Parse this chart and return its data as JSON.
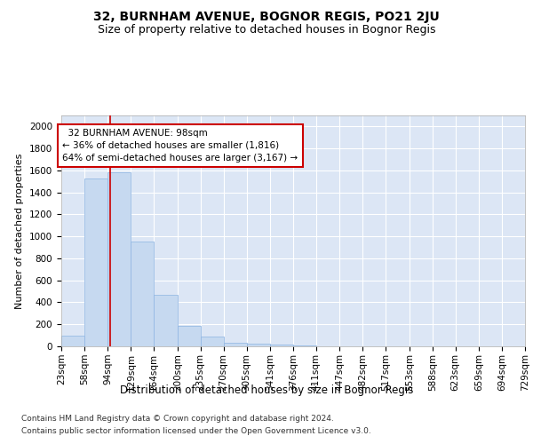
{
  "title1": "32, BURNHAM AVENUE, BOGNOR REGIS, PO21 2JU",
  "title2": "Size of property relative to detached houses in Bognor Regis",
  "xlabel": "Distribution of detached houses by size in Bognor Regis",
  "ylabel": "Number of detached properties",
  "footnote1": "Contains HM Land Registry data © Crown copyright and database right 2024.",
  "footnote2": "Contains public sector information licensed under the Open Government Licence v3.0.",
  "property_size": 98,
  "property_label": "32 BURNHAM AVENUE: 98sqm",
  "pct_smaller": 36,
  "n_smaller": 1816,
  "pct_larger_semi": 64,
  "n_larger_semi": 3167,
  "bar_color": "#c6d9f0",
  "bar_edge_color": "#8db4e2",
  "background_color": "#ffffff",
  "plot_bg_color": "#dce6f5",
  "grid_color": "#ffffff",
  "marker_line_color": "#cc0000",
  "annotation_box_edge": "#cc0000",
  "bins": [
    23,
    58,
    94,
    129,
    164,
    200,
    235,
    270,
    305,
    341,
    376,
    411,
    447,
    482,
    517,
    553,
    588,
    623,
    659,
    694,
    729
  ],
  "counts": [
    100,
    1530,
    1580,
    950,
    470,
    185,
    90,
    35,
    25,
    15,
    5,
    2,
    0,
    0,
    0,
    0,
    0,
    0,
    0,
    0
  ],
  "ylim": [
    0,
    2100
  ],
  "yticks": [
    0,
    200,
    400,
    600,
    800,
    1000,
    1200,
    1400,
    1600,
    1800,
    2000
  ],
  "title1_fontsize": 10,
  "title2_fontsize": 9,
  "xlabel_fontsize": 8.5,
  "ylabel_fontsize": 8,
  "tick_fontsize": 7.5,
  "annotation_fontsize": 7.5,
  "footnote_fontsize": 6.5
}
